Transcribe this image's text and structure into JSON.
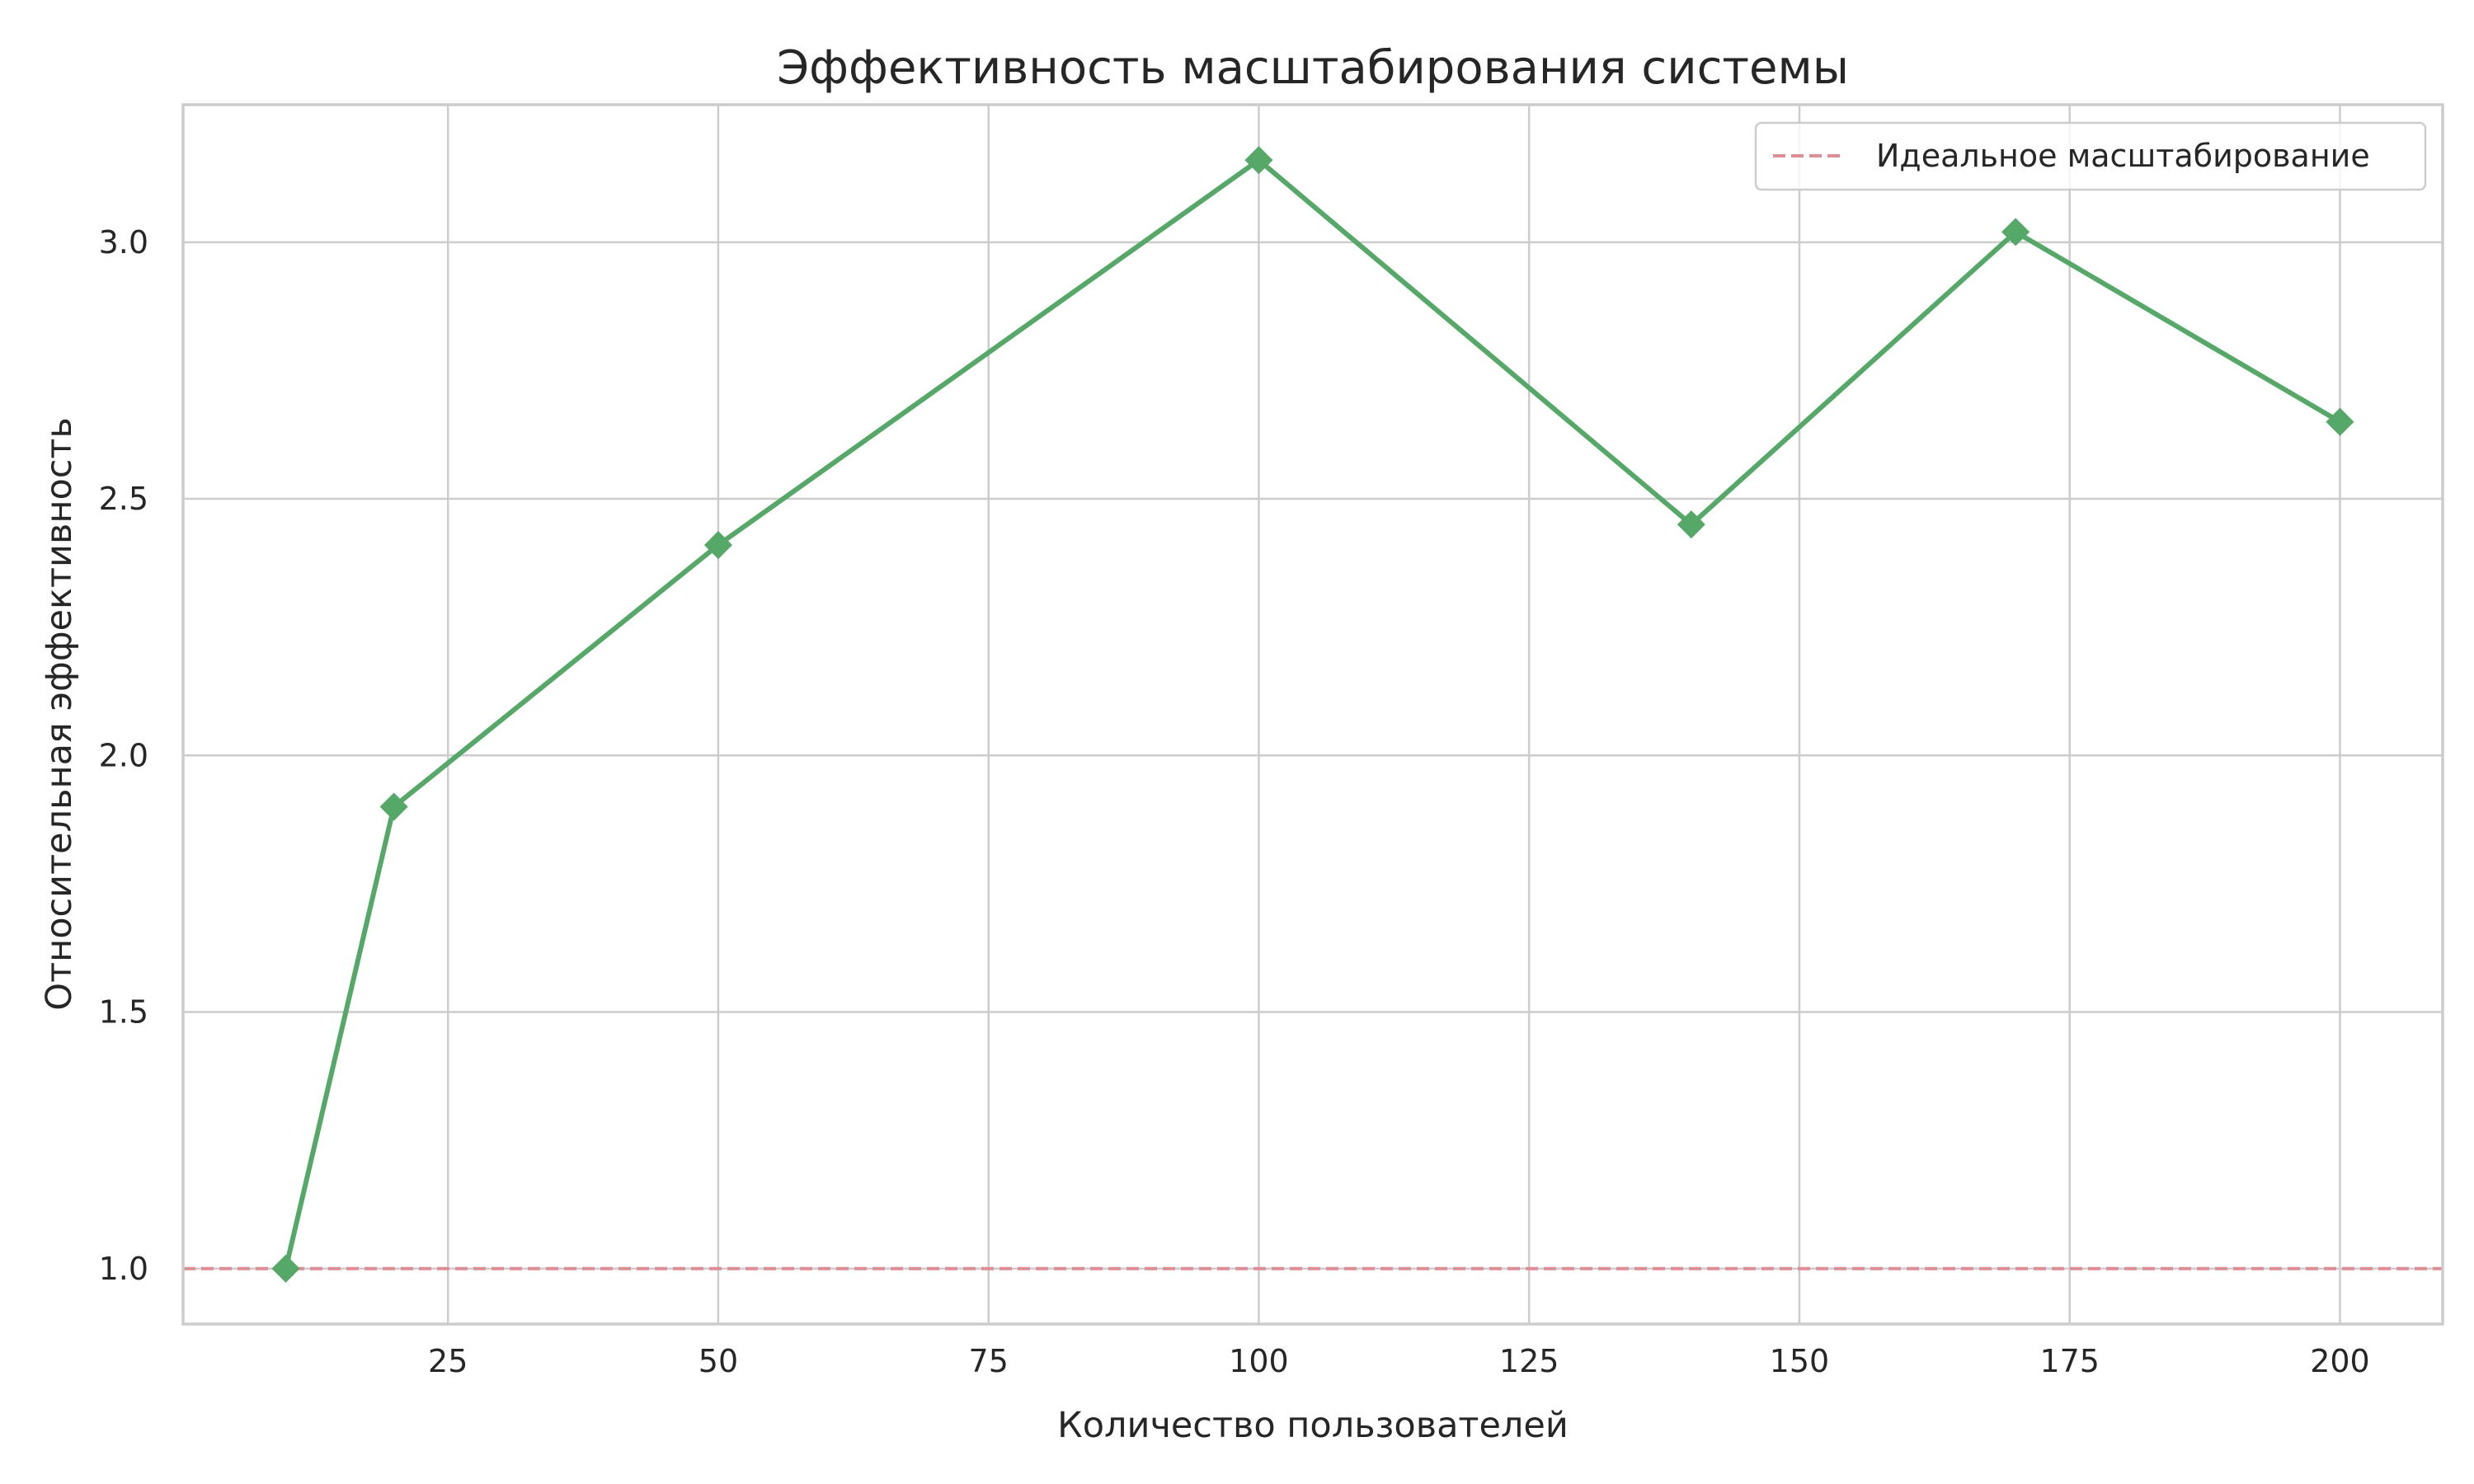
{
  "chart_data": {
    "type": "line",
    "title": "Эффективность масштабирования системы",
    "xlabel": "Количество пользователей",
    "ylabel": "Относительная эффективность",
    "x": [
      10,
      20,
      50,
      100,
      140,
      170,
      200
    ],
    "series": [
      {
        "values": [
          1.0,
          1.9,
          2.41,
          3.16,
          2.45,
          3.02,
          2.65
        ],
        "color": "#55a868",
        "marker": "diamond"
      }
    ],
    "reference_line": {
      "name": "Идеальное масштабирование",
      "y": 1.0,
      "color": "#dd8e95",
      "style": "dashed"
    },
    "xlim": [
      0.5,
      209.5
    ],
    "ylim": [
      0.892,
      3.268
    ],
    "xticks": [
      25,
      50,
      75,
      100,
      125,
      150,
      175,
      200
    ],
    "xtick_labels": [
      "25",
      "50",
      "75",
      "100",
      "125",
      "150",
      "175",
      "200"
    ],
    "yticks": [
      1.0,
      1.5,
      2.0,
      2.5,
      3.0
    ],
    "ytick_labels": [
      "1.0",
      "1.5",
      "2.0",
      "2.5",
      "3.0"
    ],
    "grid": true,
    "legend_position": "top-right"
  }
}
